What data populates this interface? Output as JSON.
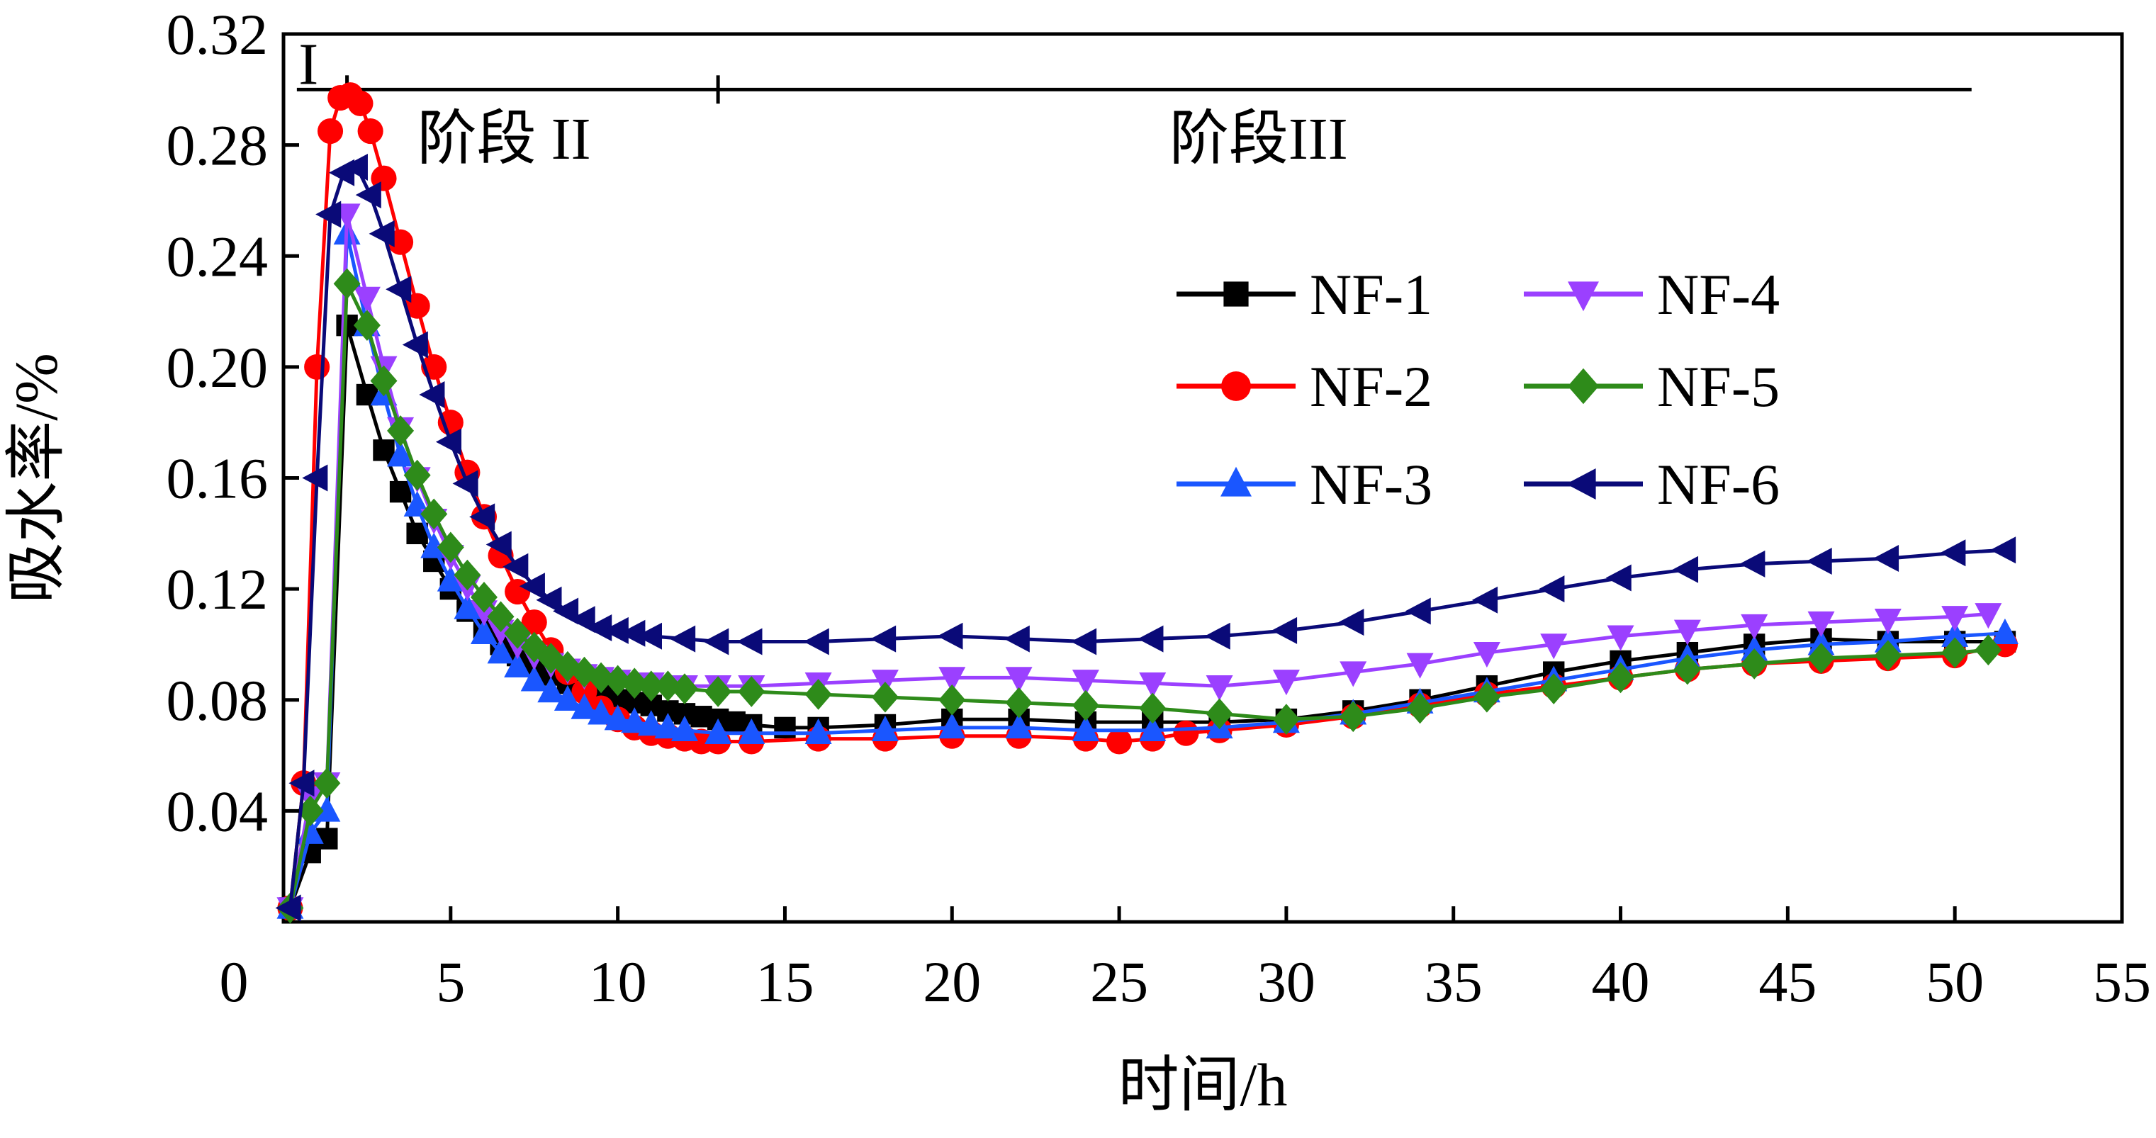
{
  "chart_data": {
    "type": "line",
    "title": "",
    "xlabel": "时间/h",
    "ylabel": "吸水率/%",
    "xlim": [
      0,
      55
    ],
    "ylim": [
      0,
      0.32
    ],
    "xticks": [
      5,
      10,
      15,
      20,
      25,
      30,
      35,
      40,
      45,
      50,
      55
    ],
    "xtick_labels": [
      "5",
      "10",
      "15",
      "20",
      "25",
      "30",
      "35",
      "40",
      "45",
      "50",
      "55"
    ],
    "yticks": [
      0.04,
      0.08,
      0.12,
      0.16,
      0.2,
      0.24,
      0.28,
      0.32
    ],
    "ytick_labels": [
      "0.04",
      "0.08",
      "0.12",
      "0.16",
      "0.20",
      "0.24",
      "0.28",
      "0.32"
    ],
    "origin_label": "0",
    "grid": false,
    "legend_position": "right, two columns",
    "stages": {
      "y": 0.3,
      "boundaries": [
        0.4,
        1.9,
        13.0,
        50.5
      ],
      "labels": [
        {
          "text": "I",
          "x": 0.45,
          "y": 0.302
        },
        {
          "text": "阶段 II",
          "x": 4.0,
          "y": 0.275
        },
        {
          "text": "阶段III",
          "x": 26.5,
          "y": 0.275
        }
      ]
    },
    "series": [
      {
        "name": "NF-1",
        "color": "#000000",
        "marker": "square",
        "x": [
          0.2,
          0.8,
          1.3,
          1.9,
          2.5,
          3.0,
          3.5,
          4.0,
          4.5,
          5.0,
          5.5,
          6.0,
          6.5,
          7.0,
          7.5,
          8.0,
          8.5,
          9.0,
          9.5,
          10.0,
          10.5,
          11.0,
          11.5,
          12.0,
          12.5,
          13.0,
          13.5,
          14.0,
          15.0,
          16.0,
          18.0,
          20.0,
          22.0,
          24.0,
          26.0,
          28.0,
          30.0,
          32.0,
          34.0,
          36.0,
          38.0,
          40.0,
          42.0,
          44.0,
          46.0,
          48.0,
          50.0,
          51.5
        ],
        "y": [
          0.005,
          0.025,
          0.03,
          0.215,
          0.19,
          0.17,
          0.155,
          0.14,
          0.13,
          0.12,
          0.112,
          0.106,
          0.1,
          0.096,
          0.092,
          0.089,
          0.086,
          0.084,
          0.082,
          0.08,
          0.079,
          0.078,
          0.076,
          0.075,
          0.074,
          0.073,
          0.072,
          0.071,
          0.07,
          0.07,
          0.071,
          0.073,
          0.073,
          0.072,
          0.072,
          0.072,
          0.073,
          0.076,
          0.08,
          0.085,
          0.09,
          0.094,
          0.097,
          0.1,
          0.102,
          0.101,
          0.101,
          0.101
        ]
      },
      {
        "name": "NF-2",
        "color": "#ff0000",
        "marker": "circle",
        "x": [
          0.2,
          0.6,
          1.0,
          1.4,
          1.7,
          2.0,
          2.3,
          2.6,
          3.0,
          3.5,
          4.0,
          4.5,
          5.0,
          5.5,
          6.0,
          6.5,
          7.0,
          7.5,
          8.0,
          8.5,
          9.0,
          9.5,
          10.0,
          10.5,
          11.0,
          11.5,
          12.0,
          12.5,
          13.0,
          14.0,
          16.0,
          18.0,
          20.0,
          22.0,
          24.0,
          25.0,
          26.0,
          27.0,
          28.0,
          30.0,
          32.0,
          34.0,
          36.0,
          38.0,
          40.0,
          42.0,
          44.0,
          46.0,
          48.0,
          50.0,
          51.5
        ],
        "y": [
          0.005,
          0.05,
          0.2,
          0.285,
          0.297,
          0.298,
          0.295,
          0.285,
          0.268,
          0.245,
          0.222,
          0.2,
          0.18,
          0.162,
          0.146,
          0.132,
          0.119,
          0.108,
          0.098,
          0.09,
          0.083,
          0.077,
          0.073,
          0.07,
          0.068,
          0.067,
          0.066,
          0.065,
          0.065,
          0.065,
          0.066,
          0.066,
          0.067,
          0.067,
          0.066,
          0.065,
          0.066,
          0.068,
          0.069,
          0.071,
          0.074,
          0.078,
          0.082,
          0.085,
          0.088,
          0.091,
          0.093,
          0.094,
          0.095,
          0.096,
          0.1
        ]
      },
      {
        "name": "NF-3",
        "color": "#1a56ff",
        "marker": "triangle-up",
        "x": [
          0.2,
          0.8,
          1.3,
          1.9,
          2.5,
          3.0,
          3.5,
          4.0,
          4.5,
          5.0,
          5.5,
          6.0,
          6.5,
          7.0,
          7.5,
          8.0,
          8.5,
          9.0,
          9.5,
          10.0,
          10.5,
          11.0,
          11.5,
          12.0,
          13.0,
          14.0,
          16.0,
          18.0,
          20.0,
          22.0,
          24.0,
          26.0,
          28.0,
          30.0,
          32.0,
          34.0,
          36.0,
          38.0,
          40.0,
          42.0,
          44.0,
          46.0,
          48.0,
          50.0,
          51.5
        ],
        "y": [
          0.005,
          0.032,
          0.04,
          0.248,
          0.215,
          0.19,
          0.168,
          0.15,
          0.135,
          0.123,
          0.113,
          0.104,
          0.097,
          0.092,
          0.087,
          0.083,
          0.08,
          0.077,
          0.075,
          0.073,
          0.072,
          0.071,
          0.07,
          0.069,
          0.068,
          0.068,
          0.068,
          0.069,
          0.07,
          0.07,
          0.069,
          0.069,
          0.07,
          0.072,
          0.075,
          0.079,
          0.083,
          0.087,
          0.091,
          0.095,
          0.098,
          0.1,
          0.101,
          0.103,
          0.104
        ]
      },
      {
        "name": "NF-4",
        "color": "#9b40ff",
        "marker": "triangle-down",
        "x": [
          0.2,
          0.8,
          1.3,
          1.9,
          2.5,
          3.0,
          3.5,
          4.0,
          4.5,
          5.0,
          5.5,
          6.0,
          6.5,
          7.0,
          7.5,
          8.0,
          8.5,
          9.0,
          9.5,
          10.0,
          10.5,
          11.0,
          12.0,
          13.0,
          14.0,
          16.0,
          18.0,
          20.0,
          22.0,
          24.0,
          26.0,
          28.0,
          30.0,
          32.0,
          34.0,
          36.0,
          38.0,
          40.0,
          42.0,
          44.0,
          46.0,
          48.0,
          50.0,
          51.0
        ],
        "y": [
          0.005,
          0.045,
          0.05,
          0.255,
          0.225,
          0.2,
          0.178,
          0.16,
          0.145,
          0.132,
          0.121,
          0.112,
          0.105,
          0.1,
          0.096,
          0.093,
          0.091,
          0.089,
          0.088,
          0.087,
          0.086,
          0.086,
          0.085,
          0.085,
          0.085,
          0.086,
          0.087,
          0.088,
          0.088,
          0.087,
          0.086,
          0.085,
          0.087,
          0.09,
          0.093,
          0.097,
          0.1,
          0.103,
          0.105,
          0.107,
          0.108,
          0.109,
          0.11,
          0.111
        ]
      },
      {
        "name": "NF-5",
        "color": "#2e8b1a",
        "marker": "diamond",
        "x": [
          0.2,
          0.8,
          1.3,
          1.9,
          2.5,
          3.0,
          3.5,
          4.0,
          4.5,
          5.0,
          5.5,
          6.0,
          6.5,
          7.0,
          7.5,
          8.0,
          8.5,
          9.0,
          9.5,
          10.0,
          10.5,
          11.0,
          11.5,
          12.0,
          13.0,
          14.0,
          16.0,
          18.0,
          20.0,
          22.0,
          24.0,
          26.0,
          28.0,
          30.0,
          32.0,
          34.0,
          36.0,
          38.0,
          40.0,
          42.0,
          44.0,
          46.0,
          48.0,
          50.0,
          51.0
        ],
        "y": [
          0.005,
          0.04,
          0.05,
          0.23,
          0.215,
          0.195,
          0.177,
          0.161,
          0.147,
          0.135,
          0.125,
          0.117,
          0.11,
          0.104,
          0.099,
          0.095,
          0.092,
          0.09,
          0.088,
          0.087,
          0.086,
          0.085,
          0.085,
          0.084,
          0.083,
          0.083,
          0.082,
          0.081,
          0.08,
          0.079,
          0.078,
          0.077,
          0.075,
          0.073,
          0.074,
          0.077,
          0.081,
          0.084,
          0.088,
          0.091,
          0.093,
          0.095,
          0.096,
          0.097,
          0.098
        ]
      },
      {
        "name": "NF-6",
        "color": "#0a0a78",
        "marker": "triangle-left",
        "x": [
          0.2,
          0.6,
          1.0,
          1.4,
          1.8,
          2.2,
          2.6,
          3.0,
          3.5,
          4.0,
          4.5,
          5.0,
          5.5,
          6.0,
          6.5,
          7.0,
          7.5,
          8.0,
          8.5,
          9.0,
          9.5,
          10.0,
          10.5,
          11.0,
          12.0,
          13.0,
          14.0,
          16.0,
          18.0,
          20.0,
          22.0,
          24.0,
          26.0,
          28.0,
          30.0,
          32.0,
          34.0,
          36.0,
          38.0,
          40.0,
          42.0,
          44.0,
          46.0,
          48.0,
          50.0,
          51.5
        ],
        "y": [
          0.005,
          0.05,
          0.16,
          0.255,
          0.27,
          0.272,
          0.262,
          0.248,
          0.228,
          0.208,
          0.19,
          0.173,
          0.158,
          0.146,
          0.136,
          0.128,
          0.121,
          0.116,
          0.112,
          0.109,
          0.106,
          0.105,
          0.104,
          0.103,
          0.102,
          0.101,
          0.101,
          0.101,
          0.102,
          0.103,
          0.102,
          0.101,
          0.102,
          0.103,
          0.105,
          0.108,
          0.112,
          0.116,
          0.12,
          0.124,
          0.127,
          0.129,
          0.13,
          0.131,
          0.133,
          0.134
        ]
      }
    ]
  }
}
